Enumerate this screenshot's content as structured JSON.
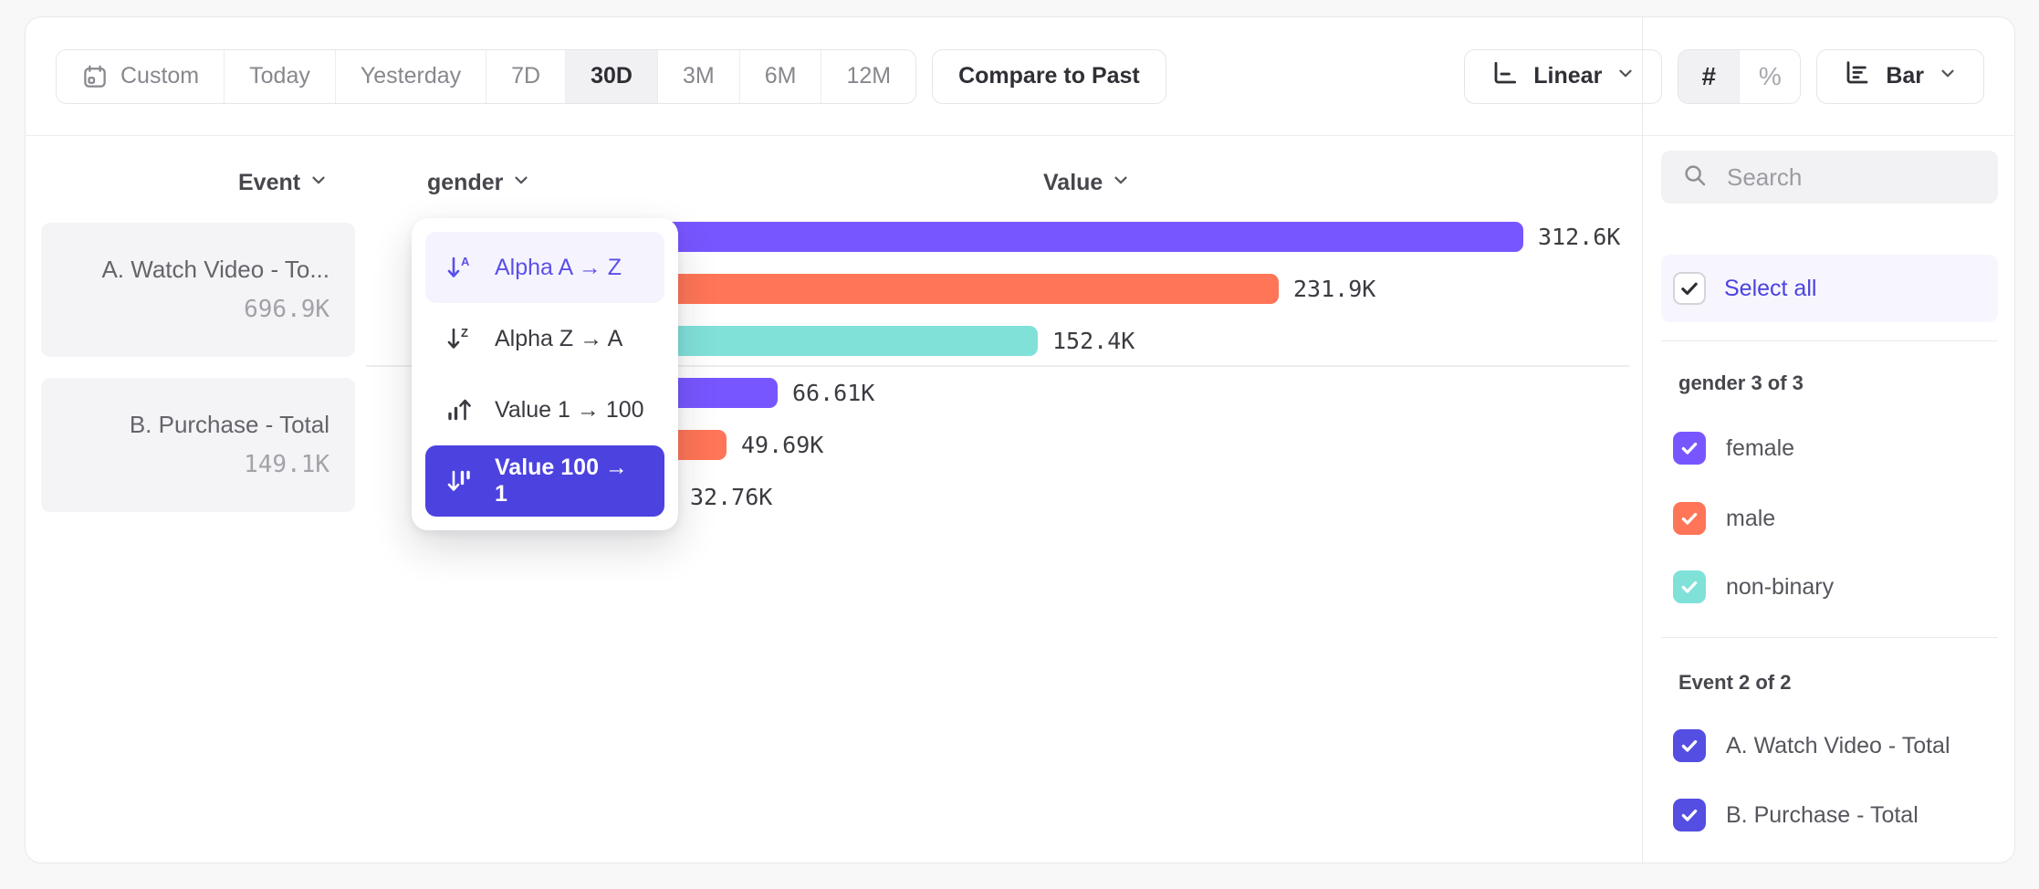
{
  "toolbar": {
    "date_ranges": [
      {
        "label": "Custom",
        "icon": "calendar",
        "selected": false
      },
      {
        "label": "Today",
        "selected": false
      },
      {
        "label": "Yesterday",
        "selected": false
      },
      {
        "label": "7D",
        "selected": false
      },
      {
        "label": "30D",
        "selected": true
      },
      {
        "label": "3M",
        "selected": false
      },
      {
        "label": "6M",
        "selected": false
      },
      {
        "label": "12M",
        "selected": false
      }
    ],
    "compare_button": "Compare to Past",
    "scale_selector": {
      "label": "Linear"
    },
    "value_modes": [
      {
        "label": "#",
        "selected": true
      },
      {
        "label": "%",
        "selected": false
      }
    ],
    "chart_type_selector": {
      "label": "Bar"
    }
  },
  "columns": {
    "event": "Event",
    "breakdown": "gender",
    "value": "Value"
  },
  "event_cards": [
    {
      "name": "A. Watch Video - To...",
      "total": "696.9K"
    },
    {
      "name": "B. Purchase - Total",
      "total": "149.1K"
    }
  ],
  "sort_menu": {
    "items": [
      {
        "label": "Alpha A → Z",
        "icon": "sort-alpha-asc",
        "state": "highlighted"
      },
      {
        "label": "Alpha Z → A",
        "icon": "sort-alpha-desc",
        "state": "normal"
      },
      {
        "label": "Value 1 → 100",
        "icon": "sort-value-asc",
        "state": "normal"
      },
      {
        "label": "Value 100 → 1",
        "icon": "sort-value-desc",
        "state": "selected"
      }
    ]
  },
  "chart_data": {
    "type": "bar",
    "orientation": "horizontal",
    "value_axis": "Value",
    "categories": [
      "female",
      "male",
      "non-binary"
    ],
    "series_colors": {
      "female": "#7856ff",
      "male": "#ff7557",
      "non-binary": "#80e1d9"
    },
    "groups": [
      {
        "event": "A. Watch Video - Total",
        "bars": [
          {
            "category": "female",
            "value": 312600,
            "label": "312.6K"
          },
          {
            "category": "male",
            "value": 231900,
            "label": "231.9K"
          },
          {
            "category": "non-binary",
            "value": 152400,
            "label": "152.4K"
          }
        ]
      },
      {
        "event": "B. Purchase - Total",
        "bars": [
          {
            "category": "female",
            "value": 66610,
            "label": "66.61K"
          },
          {
            "category": "male",
            "value": 49690,
            "label": "49.69K"
          },
          {
            "category": "non-binary",
            "value": 32760,
            "label": "32.76K"
          }
        ]
      }
    ],
    "max_value": 312600
  },
  "sidebar": {
    "search_placeholder": "Search",
    "select_all_label": "Select all",
    "sections": [
      {
        "title": "gender 3 of 3",
        "items": [
          {
            "label": "female",
            "checked": true,
            "color": "#7856ff"
          },
          {
            "label": "male",
            "checked": true,
            "color": "#ff7557"
          },
          {
            "label": "non-binary",
            "checked": true,
            "color": "#80e1d9"
          }
        ]
      },
      {
        "title": "Event 2 of 2",
        "items": [
          {
            "label": "A. Watch Video - Total",
            "checked": true,
            "color": "#544ee2"
          },
          {
            "label": "B. Purchase - Total",
            "checked": true,
            "color": "#544ee2"
          }
        ]
      }
    ]
  },
  "colors": {
    "accent": "#4c42df",
    "highlight_text": "#5b50e8",
    "series_purple": "#7856ff",
    "series_coral": "#ff7557",
    "series_teal": "#80e1d9"
  }
}
